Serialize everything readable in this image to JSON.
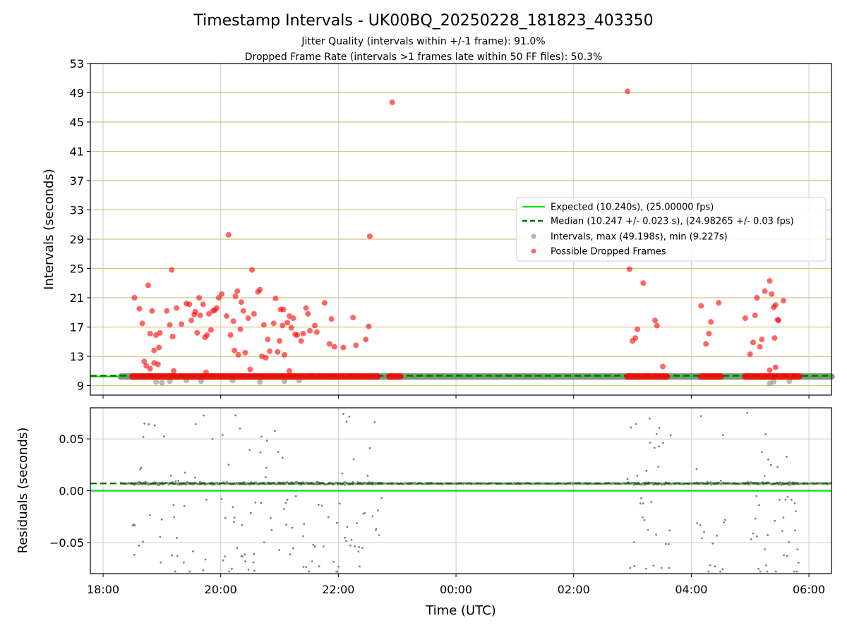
{
  "chart_data": {
    "title": "Timestamp Intervals - UK00BQ_20250228_181823_403350",
    "subtitles": [
      "Jitter Quality (intervals within +/-1 frame): 91.0%",
      "Dropped Frame Rate (intervals >1 frames late within 50 FF files): 50.3%"
    ],
    "xlabel": "Time (UTC)",
    "x_ticks": [
      "18:00",
      "20:00",
      "22:00",
      "00:00",
      "02:00",
      "04:00",
      "06:00"
    ],
    "x_range": [
      "2025-02-28 17:47",
      "2025-03-01 06:23"
    ],
    "colors": {
      "expected": "#00e000",
      "median": "#007000",
      "intervals": "#808080",
      "dropped": "#ff0000",
      "hgrid_top": "#d4c481",
      "grid": "#cccccc"
    },
    "panels": [
      {
        "type": "scatter",
        "ylabel": "Intervals (seconds)",
        "ylim": [
          7.7,
          53
        ],
        "y_ticks": [
          "9",
          "13",
          "17",
          "21",
          "25",
          "29",
          "33",
          "37",
          "41",
          "45",
          "49",
          "53"
        ],
        "expected_value": 10.24,
        "median_value": 10.247,
        "legend": {
          "position": "right",
          "entries": [
            "Expected (10.240s), (25.00000 fps)",
            "Median (10.247 +/- 0.023 s), (24.98265 +/- 0.03 fps)",
            "Intervals, max (49.198s), min (9.227s)",
            "Possible Dropped Frames"
          ]
        },
        "intervals_segments": [
          [
            "2025-02-28 18:18",
            "2025-03-01 06:23"
          ]
        ],
        "dropped_baseline_segments": [
          [
            "2025-02-28 18:30",
            "2025-02-28 22:40"
          ],
          [
            "2025-02-28 22:52",
            "2025-02-28 23:03"
          ],
          [
            "2025-03-01 02:55",
            "2025-03-01 03:35"
          ],
          [
            "2025-03-01 04:10",
            "2025-03-01 04:30"
          ],
          [
            "2025-03-01 04:55",
            "2025-03-01 05:50"
          ]
        ],
        "dropped_points": [
          [
            "2025-02-28 18:32",
            21.0
          ],
          [
            "2025-02-28 18:37",
            19.5
          ],
          [
            "2025-02-28 18:40",
            17.5
          ],
          [
            "2025-02-28 18:46",
            22.7
          ],
          [
            "2025-02-28 18:48",
            16.1
          ],
          [
            "2025-02-28 18:50",
            19.2
          ],
          [
            "2025-02-28 18:52",
            13.8
          ],
          [
            "2025-02-28 18:54",
            15.9
          ],
          [
            "2025-02-28 18:57",
            14.2
          ],
          [
            "2025-02-28 18:58",
            16.2
          ],
          [
            "2025-02-28 19:05",
            19.2
          ],
          [
            "2025-02-28 19:08",
            17.3
          ],
          [
            "2025-02-28 19:10",
            24.8
          ],
          [
            "2025-02-28 19:11",
            15.7
          ],
          [
            "2025-02-28 19:15",
            19.6
          ],
          [
            "2025-02-28 19:20",
            17.4
          ],
          [
            "2025-02-28 19:25",
            20.2
          ],
          [
            "2025-02-28 19:28",
            20.1
          ],
          [
            "2025-02-28 19:30",
            17.9
          ],
          [
            "2025-02-28 19:33",
            18.7
          ],
          [
            "2025-02-28 19:34",
            19.1
          ],
          [
            "2025-02-28 19:36",
            16.2
          ],
          [
            "2025-02-28 19:38",
            21.0
          ],
          [
            "2025-02-28 19:39",
            18.6
          ],
          [
            "2025-02-28 19:42",
            20.1
          ],
          [
            "2025-02-28 19:44",
            15.6
          ],
          [
            "2025-02-28 19:46",
            15.9
          ],
          [
            "2025-02-28 19:48",
            18.8
          ],
          [
            "2025-02-28 19:50",
            16.6
          ],
          [
            "2025-02-28 19:52",
            19.2
          ],
          [
            "2025-02-28 19:54",
            19.3
          ],
          [
            "2025-02-28 19:56",
            19.6
          ],
          [
            "2025-02-28 19:58",
            21.0
          ],
          [
            "2025-02-28 20:01",
            21.5
          ],
          [
            "2025-02-28 20:06",
            18.5
          ],
          [
            "2025-02-28 20:08",
            29.6
          ],
          [
            "2025-02-28 20:10",
            15.9
          ],
          [
            "2025-02-28 20:13",
            17.8
          ],
          [
            "2025-02-28 20:14",
            13.8
          ],
          [
            "2025-02-28 20:15",
            21.2
          ],
          [
            "2025-02-28 20:17",
            21.9
          ],
          [
            "2025-02-28 20:18",
            13.2
          ],
          [
            "2025-02-28 20:20",
            16.7
          ],
          [
            "2025-02-28 20:21",
            20.4
          ],
          [
            "2025-02-28 20:23",
            19.2
          ],
          [
            "2025-02-28 20:25",
            13.5
          ],
          [
            "2025-02-28 20:28",
            18.2
          ],
          [
            "2025-02-28 20:32",
            24.8
          ],
          [
            "2025-02-28 20:34",
            18.8
          ],
          [
            "2025-02-28 20:38",
            21.8
          ],
          [
            "2025-02-28 20:40",
            22.1
          ],
          [
            "2025-02-28 20:42",
            13.0
          ],
          [
            "2025-02-28 20:44",
            17.3
          ],
          [
            "2025-02-28 20:46",
            12.8
          ],
          [
            "2025-02-28 20:48",
            15.3
          ],
          [
            "2025-02-28 20:50",
            13.7
          ],
          [
            "2025-02-28 20:54",
            17.5
          ],
          [
            "2025-02-28 20:56",
            20.9
          ],
          [
            "2025-02-28 20:58",
            13.6
          ],
          [
            "2025-02-28 21:00",
            15.1
          ],
          [
            "2025-02-28 21:01",
            19.4
          ],
          [
            "2025-02-28 21:03",
            17.2
          ],
          [
            "2025-02-28 21:04",
            19.4
          ],
          [
            "2025-02-28 21:05",
            13.2
          ],
          [
            "2025-02-28 21:08",
            17.6
          ],
          [
            "2025-02-28 21:10",
            18.5
          ],
          [
            "2025-02-28 21:12",
            16.9
          ],
          [
            "2025-02-28 21:14",
            18.2
          ],
          [
            "2025-02-28 21:16",
            16.0
          ],
          [
            "2025-02-28 21:18",
            15.9
          ],
          [
            "2025-02-28 21:22",
            15.1
          ],
          [
            "2025-02-28 21:24",
            16.1
          ],
          [
            "2025-02-28 21:27",
            19.6
          ],
          [
            "2025-02-28 21:29",
            18.8
          ],
          [
            "2025-02-28 21:31",
            16.5
          ],
          [
            "2025-02-28 21:36",
            17.2
          ],
          [
            "2025-02-28 21:38",
            16.3
          ],
          [
            "2025-02-28 21:46",
            20.3
          ],
          [
            "2025-02-28 21:51",
            14.7
          ],
          [
            "2025-02-28 21:53",
            18.1
          ],
          [
            "2025-02-28 21:56",
            14.3
          ],
          [
            "2025-02-28 22:05",
            14.2
          ],
          [
            "2025-02-28 22:15",
            18.3
          ],
          [
            "2025-02-28 22:18",
            14.5
          ],
          [
            "2025-02-28 22:28",
            15.3
          ],
          [
            "2025-02-28 22:31",
            17.1
          ],
          [
            "2025-02-28 22:32",
            29.4
          ],
          [
            "2025-02-28 22:55",
            47.7
          ],
          [
            "2025-03-01 02:55",
            49.2
          ],
          [
            "2025-03-01 02:57",
            24.9
          ],
          [
            "2025-03-01 03:00",
            15.1
          ],
          [
            "2025-03-01 03:03",
            15.5
          ],
          [
            "2025-03-01 03:05",
            16.7
          ],
          [
            "2025-03-01 03:11",
            23.0
          ],
          [
            "2025-03-01 03:23",
            17.9
          ],
          [
            "2025-03-01 03:25",
            17.2
          ],
          [
            "2025-03-01 03:31",
            11.6
          ],
          [
            "2025-03-01 04:10",
            19.9
          ],
          [
            "2025-03-01 04:15",
            14.7
          ],
          [
            "2025-03-01 04:18",
            16.1
          ],
          [
            "2025-03-01 04:20",
            17.7
          ],
          [
            "2025-03-01 04:28",
            20.3
          ],
          [
            "2025-03-01 04:55",
            18.2
          ],
          [
            "2025-03-01 05:00",
            13.3
          ],
          [
            "2025-03-01 05:03",
            14.9
          ],
          [
            "2025-03-01 05:05",
            18.6
          ],
          [
            "2025-03-01 05:07",
            21.0
          ],
          [
            "2025-03-01 05:10",
            14.3
          ],
          [
            "2025-03-01 05:12",
            15.3
          ],
          [
            "2025-03-01 05:15",
            21.9
          ],
          [
            "2025-03-01 05:20",
            23.3
          ],
          [
            "2025-03-01 05:22",
            21.5
          ],
          [
            "2025-03-01 05:24",
            19.7
          ],
          [
            "2025-03-01 05:26",
            20.0
          ],
          [
            "2025-03-01 05:25",
            15.5
          ],
          [
            "2025-03-01 05:28",
            18.0
          ],
          [
            "2025-03-01 05:29",
            17.9
          ],
          [
            "2025-03-01 05:34",
            20.6
          ],
          [
            "2025-02-28 18:42",
            12.3
          ],
          [
            "2025-02-28 18:44",
            11.7
          ],
          [
            "2025-02-28 18:48",
            11.3
          ],
          [
            "2025-02-28 18:52",
            12.1
          ],
          [
            "2025-02-28 18:56",
            11.9
          ],
          [
            "2025-02-28 19:12",
            11.0
          ],
          [
            "2025-02-28 19:45",
            10.8
          ],
          [
            "2025-02-28 20:30",
            11.2
          ],
          [
            "2025-02-28 21:10",
            11.0
          ],
          [
            "2025-03-01 05:20",
            11.1
          ],
          [
            "2025-03-01 05:26",
            11.5
          ]
        ],
        "gray_low_points": [
          [
            "2025-02-28 18:54",
            9.5
          ],
          [
            "2025-02-28 19:00",
            9.4
          ],
          [
            "2025-02-28 19:08",
            9.6
          ],
          [
            "2025-02-28 19:25",
            9.7
          ],
          [
            "2025-02-28 19:40",
            9.6
          ],
          [
            "2025-02-28 20:12",
            9.7
          ],
          [
            "2025-02-28 20:40",
            9.5
          ],
          [
            "2025-02-28 21:05",
            9.6
          ],
          [
            "2025-02-28 21:20",
            9.7
          ],
          [
            "2025-03-01 05:20",
            9.3
          ],
          [
            "2025-03-01 05:24",
            9.5
          ],
          [
            "2025-03-01 05:40",
            9.6
          ]
        ]
      },
      {
        "type": "scatter",
        "ylabel": "Residuals (seconds)",
        "ylim": [
          -0.08,
          0.08
        ],
        "y_ticks": [
          "−0.05",
          "0.00",
          "0.05"
        ],
        "y_tick_values": [
          -0.05,
          0.0,
          0.05
        ],
        "expected_value": 0.0,
        "median_value": 0.007,
        "noisy_periods": [
          [
            "2025-02-28 18:30",
            "2025-02-28 22:45"
          ],
          [
            "2025-03-01 02:55",
            "2025-03-01 03:40"
          ],
          [
            "2025-03-01 04:05",
            "2025-03-01 04:35"
          ],
          [
            "2025-03-01 04:55",
            "2025-03-01 05:50"
          ]
        ]
      }
    ]
  }
}
